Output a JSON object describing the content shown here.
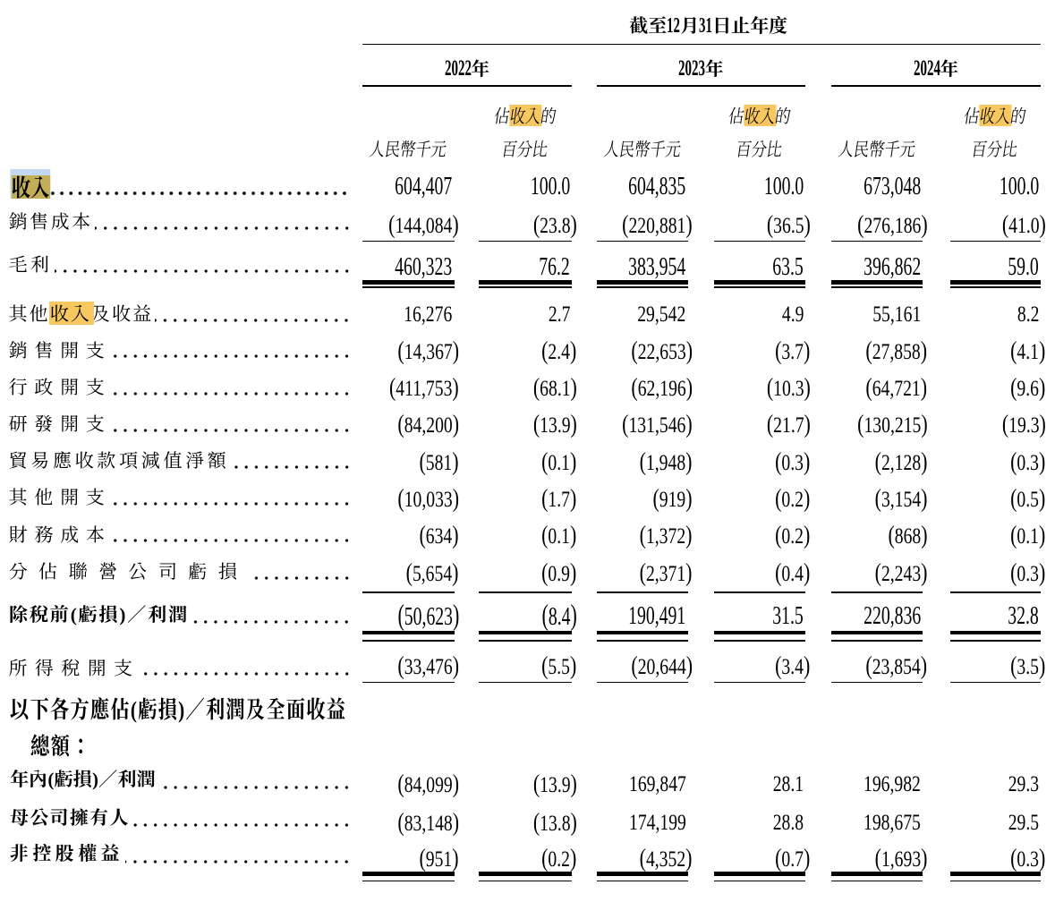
{
  "table": {
    "period_header": "截至12月31日止年度",
    "col_groups": [
      {
        "year_digits": "2022",
        "year_suffix": "年"
      },
      {
        "year_digits": "2023",
        "year_suffix": "年"
      },
      {
        "year_digits": "2024",
        "year_suffix": "年"
      }
    ],
    "col_headers": {
      "amount_unit": "人民幣千元",
      "pct_line1": [
        {
          "t": "佔"
        },
        {
          "t": "收入",
          "hl": true
        },
        {
          "t": "的"
        }
      ],
      "pct_line2": "百分比"
    },
    "rows": [
      {
        "label": [
          {
            "t": "收入",
            "hl": "active"
          }
        ],
        "bold": true,
        "large": true,
        "leader": true,
        "values": [
          "604,407",
          "100.0",
          "604,835",
          "100.0",
          "673,048",
          "100.0"
        ]
      },
      {
        "label": [
          {
            "t": "銷售成本"
          }
        ],
        "leader": true,
        "values": [
          "(144,084)",
          "(23.8)",
          "(220,881)",
          "(36.5)",
          "(276,186)",
          "(41.0)"
        ],
        "rule": "single"
      },
      {
        "label": [
          {
            "t": "毛利"
          }
        ],
        "large": true,
        "leader": true,
        "values": [
          "460,323",
          "76.2",
          "383,954",
          "63.5",
          "396,862",
          "59.0"
        ],
        "rule": "double"
      },
      {
        "label": [
          {
            "t": "其他"
          },
          {
            "t": "收入",
            "hl": true
          },
          {
            "t": "及收益"
          }
        ],
        "leader": true,
        "values": [
          "16,276",
          "2.7",
          "29,542",
          "4.9",
          "55,161",
          "8.2"
        ]
      },
      {
        "label": [
          {
            "t": "銷售開支"
          }
        ],
        "leader": true,
        "values": [
          "(14,367)",
          "(2.4)",
          "(22,653)",
          "(3.7)",
          "(27,858)",
          "(4.1)"
        ]
      },
      {
        "label": [
          {
            "t": "行政開支"
          }
        ],
        "leader": true,
        "values": [
          "(411,753)",
          "(68.1)",
          "(62,196)",
          "(10.3)",
          "(64,721)",
          "(9.6)"
        ]
      },
      {
        "label": [
          {
            "t": "研發開支"
          }
        ],
        "leader": true,
        "values": [
          "(84,200)",
          "(13.9)",
          "(131,546)",
          "(21.7)",
          "(130,215)",
          "(19.3)"
        ]
      },
      {
        "label": [
          {
            "t": "貿易應收款項減值淨額"
          }
        ],
        "leader": true,
        "values": [
          "(581)",
          "(0.1)",
          "(1,948)",
          "(0.3)",
          "(2,128)",
          "(0.3)"
        ]
      },
      {
        "label": [
          {
            "t": "其他開支"
          }
        ],
        "leader": true,
        "values": [
          "(10,033)",
          "(1.7)",
          "(919)",
          "(0.2)",
          "(3,154)",
          "(0.5)"
        ]
      },
      {
        "label": [
          {
            "t": "財務成本"
          }
        ],
        "leader": true,
        "values": [
          "(634)",
          "(0.1)",
          "(1,372)",
          "(0.2)",
          "(868)",
          "(0.1)"
        ]
      },
      {
        "label": [
          {
            "t": "分佔聯營公司虧損"
          }
        ],
        "leader": true,
        "values": [
          "(5,654)",
          "(0.9)",
          "(2,371)",
          "(0.4)",
          "(2,243)",
          "(0.3)"
        ],
        "rule": "single"
      },
      {
        "label": [
          {
            "t": "除稅前(虧損)／利潤"
          }
        ],
        "bold": true,
        "large": true,
        "leader": true,
        "values": [
          "(50,623)",
          "(8.4)",
          "190,491",
          "31.5",
          "220,836",
          "32.8"
        ],
        "rule": "double"
      },
      {
        "label": [
          {
            "t": "所得稅開支"
          }
        ],
        "leader": true,
        "values": [
          "(33,476)",
          "(5.5)",
          "(20,644)",
          "(3.4)",
          "(23,854)",
          "(3.5)"
        ],
        "rule": "single"
      },
      {
        "label": [
          {
            "t": "以下各方應佔(虧損)／利潤及全面收益"
          }
        ],
        "bold": true
      },
      {
        "label": [
          {
            "t": "總額："
          }
        ],
        "bold": true,
        "indent": true
      },
      {
        "label": [
          {
            "t": "年內(虧損)／利潤"
          }
        ],
        "bold": true,
        "leader": true,
        "values": [
          "(84,099)",
          "(13.9)",
          "169,847",
          "28.1",
          "196,982",
          "29.3"
        ]
      },
      {
        "label": [
          {
            "t": "母公司擁有人"
          }
        ],
        "bold": true,
        "leader": true,
        "values": [
          "(83,148)",
          "(13.8)",
          "174,199",
          "28.8",
          "198,675",
          "29.5"
        ]
      },
      {
        "label": [
          {
            "t": "非控股權益"
          }
        ],
        "bold": true,
        "leader": true,
        "values": [
          "(951)",
          "(0.2)",
          "(4,352)",
          "(0.7)",
          "(1,693)",
          "(0.3)"
        ],
        "rule": "double"
      }
    ],
    "colors": {
      "text": "#000000",
      "highlight": "#F8C860",
      "highlight_active": "#C3AE58",
      "selection": "#C2D8F0"
    }
  }
}
